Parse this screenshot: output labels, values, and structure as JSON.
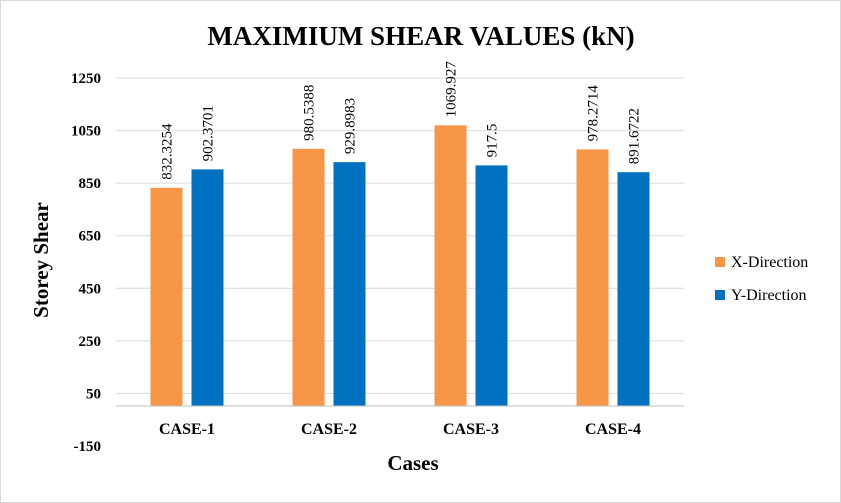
{
  "chart_data": {
    "type": "bar",
    "title": "MAXIMIUM SHEAR VALUES (kN)",
    "xlabel": "Cases",
    "ylabel": "Storey Shear",
    "categories": [
      "CASE-1",
      "CASE-2",
      "CASE-3",
      "CASE-4"
    ],
    "series": [
      {
        "name": "X-Direction",
        "color": "#f79646",
        "values": [
          832.3254,
          980.5388,
          1069.927,
          978.2714
        ],
        "labels": [
          "832.3254",
          "980.5388",
          "1069.927",
          "978.2714"
        ]
      },
      {
        "name": "Y-Direction",
        "color": "#0070c0",
        "values": [
          902.3701,
          929.8983,
          917.5,
          891.6722
        ],
        "labels": [
          "902.3701",
          "929.8983",
          "917.5",
          "891.6722"
        ]
      }
    ],
    "yticks": [
      "1250",
      "1050",
      "850",
      "650",
      "450",
      "250",
      "50",
      "-150"
    ],
    "ylim": [
      -150,
      1250
    ],
    "grid": true,
    "legend": "right"
  }
}
